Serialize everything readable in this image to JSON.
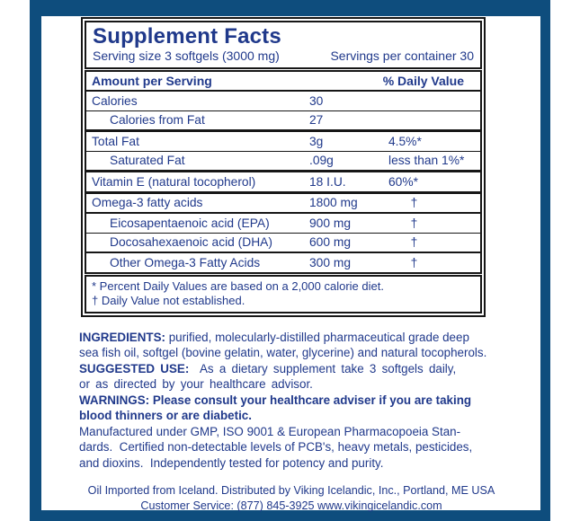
{
  "colors": {
    "frame_blue": "#0e4d7d",
    "text_navy": "#20398b",
    "rule_black": "#161616"
  },
  "panel": {
    "title": "Supplement Facts",
    "serving_size": "Serving size 3 softgels (3000 mg)",
    "servings_per_container": "Servings per container 30",
    "columns": {
      "amount": "Amount per Serving",
      "daily_value": "% Daily Value"
    },
    "rows": [
      {
        "name": "Calories",
        "amount": "30",
        "dv": ""
      },
      {
        "name": "Calories from Fat",
        "amount": "27",
        "dv": ""
      },
      {
        "name": "Total Fat",
        "amount": "3g",
        "dv": "4.5%*"
      },
      {
        "name": "Saturated Fat",
        "amount": ".09g",
        "dv": "less than 1%*"
      },
      {
        "name": "Vitamin E (natural tocopherol)",
        "amount": "18 I.U.",
        "dv": "60%*"
      },
      {
        "name": "Omega-3 fatty acids",
        "amount": "1800 mg",
        "dv": "†"
      },
      {
        "name": "Eicosapentaenoic acid (EPA)",
        "amount": "900 mg",
        "dv": "†"
      },
      {
        "name": "Docosahexaenoic acid (DHA)",
        "amount": "600 mg",
        "dv": "†"
      },
      {
        "name": "Other Omega-3 Fatty Acids",
        "amount": "300 mg",
        "dv": "†"
      }
    ],
    "footnotes": [
      "* Percent Daily Values are based on a 2,000 calorie diet.",
      "† Daily Value not established."
    ]
  },
  "paragraphs": [
    {
      "label": "INGREDIENTS:",
      "text": " purified, molecularly-distilled pharmaceutical grade deep\nsea fish oil, softgel (bovine gelatin, water, glycerine) and natural tocopherols."
    },
    {
      "label": "SUGGESTED USE:",
      "text": "  As a dietary supplement take 3 softgels daily,\nor as directed by your healthcare advisor."
    },
    {
      "label": "WARNINGS:",
      "text": " Please consult your healthcare adviser if you are taking\nblood thinners or are diabetic."
    },
    {
      "label": "",
      "text": "Manufactured under GMP, ISO 9001 & European Pharmacopoeia Stan-\ndards.  Certified non-detectable levels of PCB's, heavy metals, pesticides,\nand dioxins.  Independently tested for potency and purity."
    }
  ],
  "footer": [
    "Oil Imported from Iceland.  Distributed by Viking Icelandic, Inc., Portland, ME USA",
    "Customer Service: (877) 845-3925  www.vikingicelandic.com"
  ]
}
